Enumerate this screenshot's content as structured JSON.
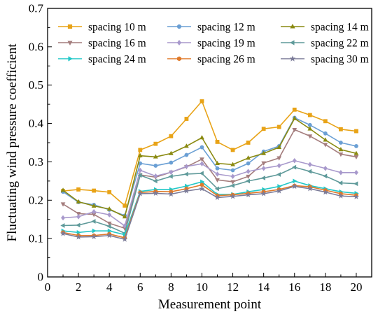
{
  "chart_data": {
    "type": "line",
    "xlabel": "Measurement point",
    "ylabel": "Fluctuating wind pressure coefficient",
    "xlim": [
      0,
      21
    ],
    "ylim": [
      0,
      0.7
    ],
    "xticks": [
      0,
      2,
      4,
      6,
      8,
      10,
      12,
      14,
      16,
      18,
      20
    ],
    "yticks": [
      0,
      0.1,
      0.2,
      0.3,
      0.4,
      0.5,
      0.6,
      0.7
    ],
    "ytick_labels": [
      "0",
      "0.1",
      "0.2",
      "0.3",
      "0.4",
      "0.5",
      "0.6",
      "0.7"
    ],
    "legend_position": "top",
    "x": [
      1,
      2,
      3,
      4,
      5,
      6,
      7,
      8,
      9,
      10,
      11,
      12,
      13,
      14,
      15,
      16,
      17,
      18,
      19,
      20
    ],
    "series": [
      {
        "name": "spacing 10 m",
        "color": "#E8A317",
        "marker": "square",
        "values": [
          0.224,
          0.228,
          0.225,
          0.221,
          0.186,
          0.331,
          0.347,
          0.367,
          0.412,
          0.458,
          0.352,
          0.331,
          0.35,
          0.386,
          0.391,
          0.436,
          0.422,
          0.406,
          0.385,
          0.38
        ]
      },
      {
        "name": "spacing 12 m",
        "color": "#6A9FD4",
        "marker": "circle",
        "values": [
          0.222,
          0.195,
          0.188,
          0.175,
          0.16,
          0.296,
          0.29,
          0.298,
          0.318,
          0.338,
          0.283,
          0.278,
          0.296,
          0.327,
          0.341,
          0.415,
          0.396,
          0.374,
          0.35,
          0.341
        ]
      },
      {
        "name": "spacing 14 m",
        "color": "#8A8A10",
        "marker": "triangle-up",
        "values": [
          0.226,
          0.196,
          0.185,
          0.177,
          0.157,
          0.316,
          0.313,
          0.322,
          0.341,
          0.363,
          0.296,
          0.293,
          0.31,
          0.322,
          0.338,
          0.413,
          0.386,
          0.357,
          0.332,
          0.322
        ]
      },
      {
        "name": "spacing 16 m",
        "color": "#A47D7D",
        "marker": "triangle-down",
        "values": [
          0.19,
          0.165,
          0.163,
          0.14,
          0.127,
          0.266,
          0.26,
          0.273,
          0.287,
          0.307,
          0.253,
          0.248,
          0.262,
          0.297,
          0.31,
          0.384,
          0.367,
          0.345,
          0.32,
          0.313
        ]
      },
      {
        "name": "spacing 19 m",
        "color": "#A899CC",
        "marker": "diamond",
        "values": [
          0.154,
          0.157,
          0.17,
          0.162,
          0.133,
          0.278,
          0.263,
          0.273,
          0.288,
          0.295,
          0.268,
          0.262,
          0.275,
          0.283,
          0.29,
          0.303,
          0.293,
          0.283,
          0.272,
          0.272
        ]
      },
      {
        "name": "spacing 22 m",
        "color": "#5F9A9A",
        "marker": "triangle-left",
        "values": [
          0.134,
          0.135,
          0.145,
          0.132,
          0.114,
          0.265,
          0.25,
          0.262,
          0.268,
          0.27,
          0.23,
          0.238,
          0.25,
          0.258,
          0.267,
          0.286,
          0.275,
          0.263,
          0.245,
          0.243
        ]
      },
      {
        "name": "spacing 24 m",
        "color": "#22C8C8",
        "marker": "triangle-right",
        "values": [
          0.12,
          0.116,
          0.12,
          0.12,
          0.11,
          0.223,
          0.228,
          0.228,
          0.237,
          0.248,
          0.215,
          0.215,
          0.222,
          0.228,
          0.236,
          0.25,
          0.238,
          0.23,
          0.222,
          0.218
        ]
      },
      {
        "name": "spacing 26 m",
        "color": "#E07A2A",
        "marker": "hexagon",
        "values": [
          0.116,
          0.108,
          0.108,
          0.112,
          0.102,
          0.22,
          0.223,
          0.222,
          0.23,
          0.24,
          0.212,
          0.214,
          0.218,
          0.222,
          0.228,
          0.238,
          0.235,
          0.226,
          0.217,
          0.213
        ]
      },
      {
        "name": "spacing 30 m",
        "color": "#7C7C99",
        "marker": "star",
        "values": [
          0.113,
          0.104,
          0.105,
          0.108,
          0.098,
          0.217,
          0.218,
          0.216,
          0.224,
          0.23,
          0.207,
          0.21,
          0.214,
          0.217,
          0.224,
          0.236,
          0.23,
          0.221,
          0.211,
          0.209
        ]
      }
    ]
  }
}
